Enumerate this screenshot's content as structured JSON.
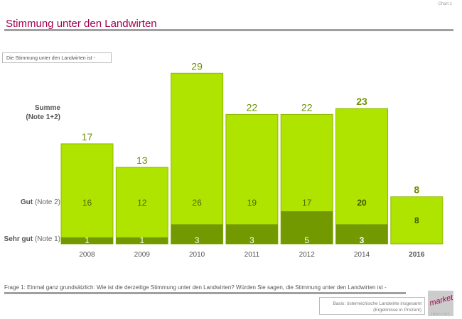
{
  "header": {
    "chart_label": "Chart 1",
    "title": "Stimmung unter den Landwirten",
    "question_box": "Die Stimmung unter den Landwirten ist -"
  },
  "row_labels": {
    "sum_line1": "Summe",
    "sum_line2": "(Note 1+2)",
    "gut_bold": "Gut",
    "gut_rest": " (Note 2)",
    "sehr_bold": "Sehr gut",
    "sehr_rest": " (Note 1)"
  },
  "footer": {
    "question": "Frage 1:    Einmal ganz grundsätzlich: Wie ist die derzeitige Stimmung unter den Landwirten? Würden Sie sagen, die Stimmung unter den Landwirten ist -",
    "basis_line1": "Basis: österreichische Landwirte insgesamt",
    "basis_line2": "(Ergebnisse in Prozent)",
    "logo_text": "market",
    "logo_sub": "INSTITUT"
  },
  "colors": {
    "gut": "#aee400",
    "sehr_gut": "#729a00",
    "label_green": "#6d8f00",
    "title": "#a0004f"
  },
  "chart_data": {
    "type": "bar",
    "stacked": true,
    "categories": [
      "2008",
      "2009",
      "2010",
      "2011",
      "2012",
      "2014",
      "2016"
    ],
    "bold_categories": [
      "2016"
    ],
    "series": [
      {
        "name": "Sehr gut (Note 1)",
        "values": [
          1,
          1,
          3,
          3,
          5,
          3,
          0
        ]
      },
      {
        "name": "Gut (Note 2)",
        "values": [
          16,
          12,
          26,
          19,
          17,
          20,
          8
        ]
      }
    ],
    "totals": [
      17,
      13,
      29,
      22,
      22,
      23,
      8
    ],
    "bold_totals": [
      "2014",
      "2016"
    ],
    "ylim": [
      0,
      30
    ]
  }
}
